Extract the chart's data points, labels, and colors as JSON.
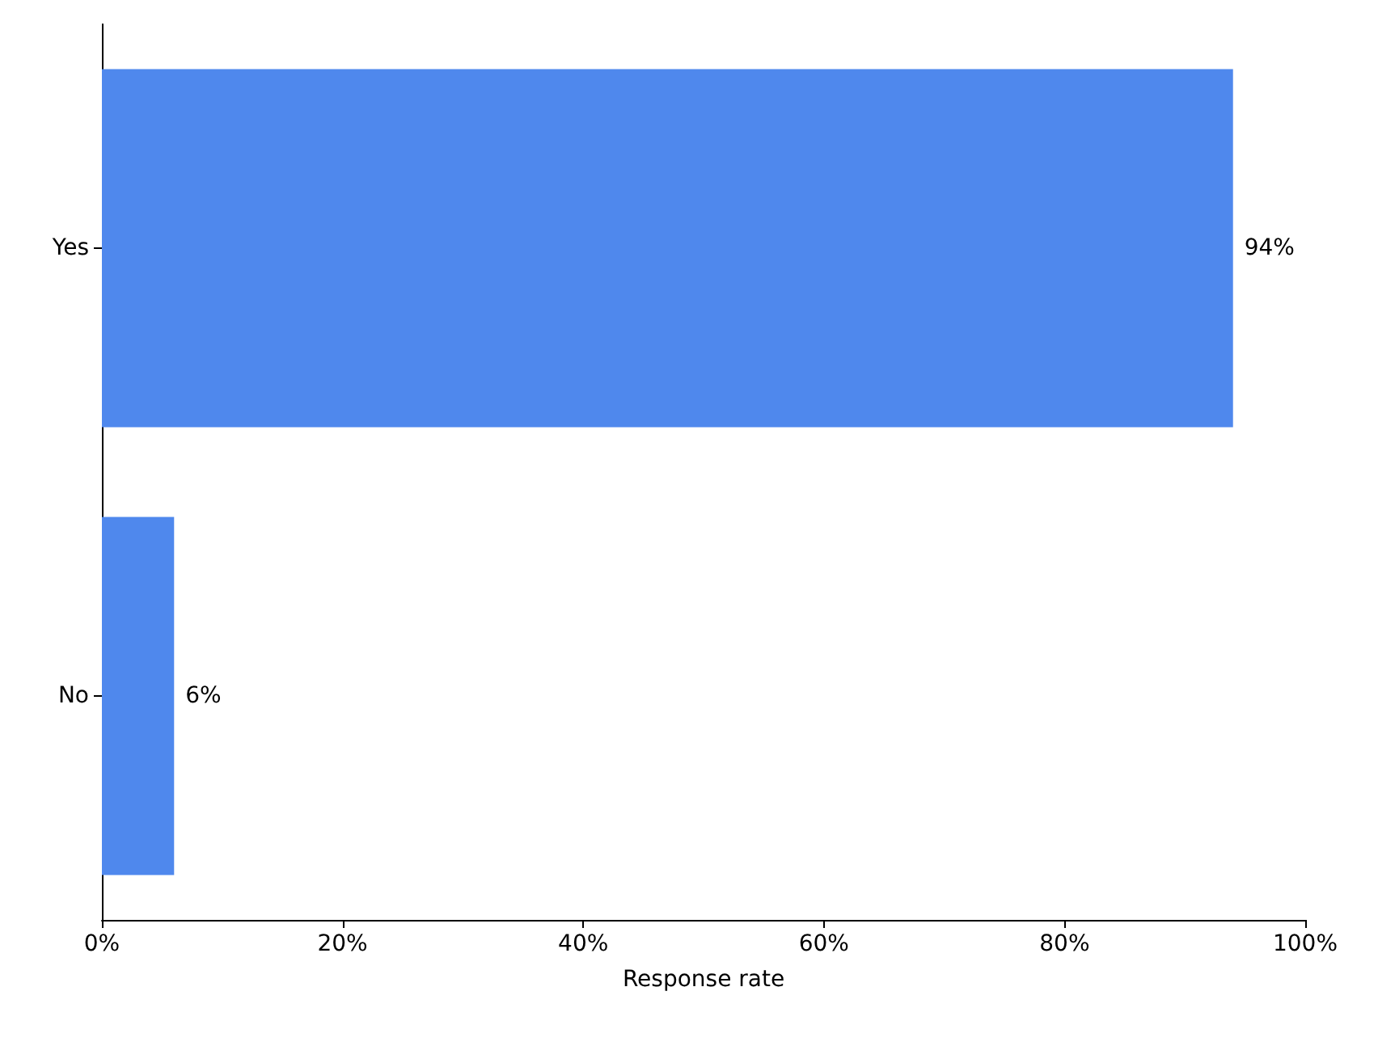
{
  "chart_data": {
    "type": "bar",
    "orientation": "horizontal",
    "xlabel": "Response rate",
    "categories": [
      "Yes",
      "No"
    ],
    "values": [
      94,
      6
    ],
    "value_labels": [
      "94%",
      "6%"
    ],
    "color": "#4f88ed",
    "xlim": [
      0,
      100
    ],
    "xticks": [
      {
        "value": 0,
        "label": "0%"
      },
      {
        "value": 20,
        "label": "20%"
      },
      {
        "value": 40,
        "label": "40%"
      },
      {
        "value": 60,
        "label": "60%"
      },
      {
        "value": 80,
        "label": "80%"
      },
      {
        "value": 100,
        "label": "100%"
      }
    ],
    "grid": false
  }
}
